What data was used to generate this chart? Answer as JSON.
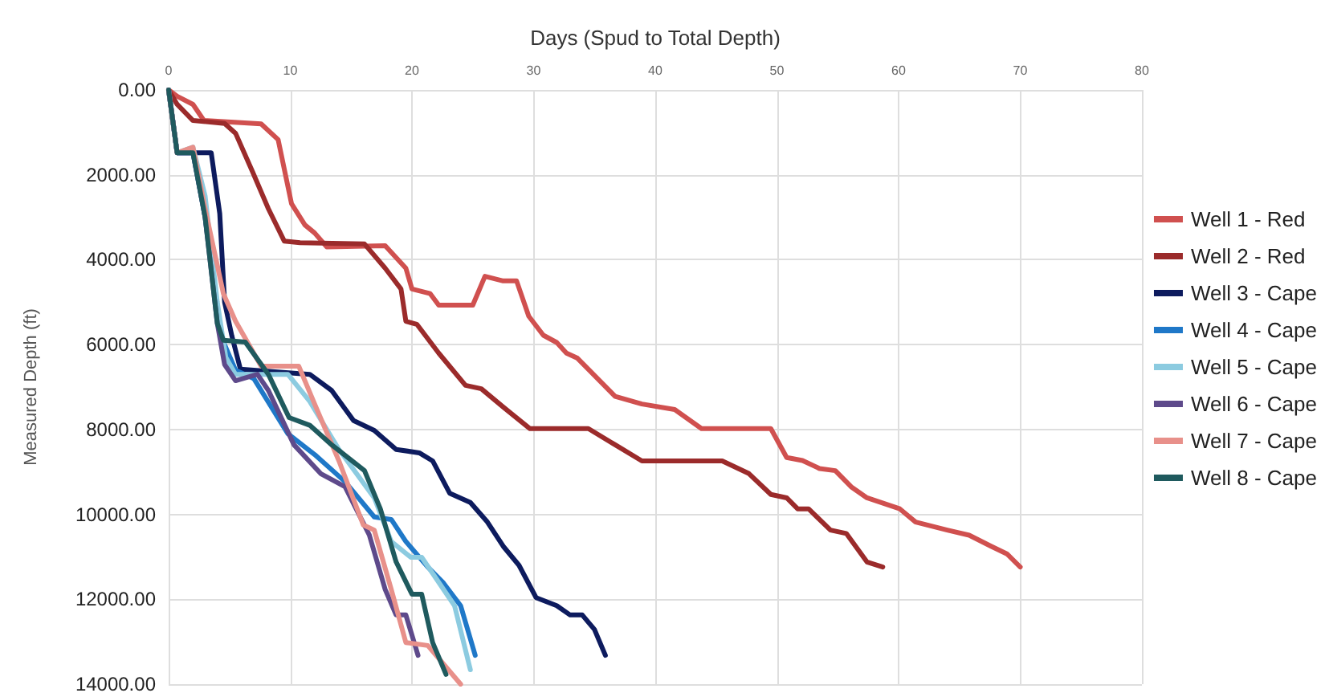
{
  "chart_data": {
    "type": "line",
    "xlabel": "Days (Spud to Total Depth)",
    "ylabel": "Measured Depth (ft)",
    "xlim": [
      0,
      80
    ],
    "xticks": [
      0,
      10,
      20,
      30,
      40,
      50,
      60,
      70,
      80
    ],
    "ylim": [
      14000,
      0
    ],
    "yticks": [
      {
        "value": 0,
        "label": "0.00"
      },
      {
        "value": 2000,
        "label": "2000.00"
      },
      {
        "value": 4000,
        "label": "4000.00"
      },
      {
        "value": 6000,
        "label": "6000.00"
      },
      {
        "value": 8000,
        "label": "8000.00"
      },
      {
        "value": 10000,
        "label": "10000.00"
      },
      {
        "value": 12000,
        "label": "12000.00"
      },
      {
        "value": 14000,
        "label": "14000.00"
      }
    ],
    "grid": true,
    "legend": "right",
    "marker": "none",
    "line_style": "solid",
    "series": [
      {
        "name": "Well 1 - Red",
        "color": "#d0504f",
        "x": [
          0,
          0.7,
          2,
          2.9,
          7.6,
          9,
          10.1,
          11.2,
          12,
          13,
          17.8,
          19.5,
          20,
          21.5,
          22.2,
          25,
          26,
          27.5,
          28.6,
          29.6,
          30.8,
          31.9,
          32.7,
          33.6,
          34.5,
          36.7,
          38.9,
          41.6,
          43.8,
          49.5,
          50.8,
          52.1,
          53.5,
          54.8,
          56.1,
          57.4,
          60.1,
          61.4,
          64,
          65.8,
          67.6,
          68.9,
          70
        ],
        "values": [
          0,
          150,
          340,
          720,
          800,
          1170,
          2680,
          3180,
          3370,
          3700,
          3670,
          4200,
          4690,
          4800,
          5070,
          5070,
          4390,
          4500,
          4500,
          5330,
          5780,
          5950,
          6200,
          6320,
          6580,
          7220,
          7400,
          7530,
          7980,
          7980,
          8660,
          8730,
          8920,
          8970,
          9350,
          9610,
          9870,
          10180,
          10370,
          10490,
          10750,
          10930,
          11240
        ]
      },
      {
        "name": "Well 2 - Red",
        "color": "#9b2b2b",
        "x": [
          0,
          0.7,
          2,
          4.6,
          5.5,
          6.9,
          8.2,
          9.5,
          10.8,
          16.1,
          17.8,
          19.1,
          19.5,
          20.4,
          22.2,
          24.4,
          25.7,
          27.5,
          29.7,
          34.5,
          36.7,
          38.9,
          45.5,
          47.7,
          49.5,
          50.8,
          51.7,
          52.6,
          54.4,
          55.7,
          57.4,
          58.7
        ],
        "values": [
          0,
          340,
          720,
          790,
          1020,
          1930,
          2800,
          3560,
          3600,
          3630,
          4200,
          4690,
          5450,
          5520,
          6200,
          6960,
          7040,
          7470,
          7980,
          7980,
          8360,
          8740,
          8740,
          9040,
          9530,
          9610,
          9870,
          9870,
          10370,
          10450,
          11120,
          11240
        ]
      },
      {
        "name": "Well 3 - Cape",
        "color": "#0d1b5e",
        "x": [
          0,
          0.7,
          2,
          3.5,
          4.2,
          4.6,
          5.2,
          5.9,
          11.6,
          13.4,
          15.2,
          16.9,
          18.7,
          20.6,
          21.7,
          23.1,
          24.8,
          26.2,
          27.5,
          28.8,
          30.2,
          31.9,
          33,
          34,
          35,
          35.9
        ],
        "values": [
          0,
          1480,
          1480,
          1480,
          2910,
          5000,
          5800,
          6580,
          6700,
          7080,
          7790,
          8020,
          8470,
          8550,
          8740,
          9500,
          9720,
          10180,
          10750,
          11200,
          11960,
          12150,
          12370,
          12370,
          12710,
          13320
        ]
      },
      {
        "name": "Well 4 - Cape",
        "color": "#1f78c8",
        "x": [
          0,
          0.7,
          2,
          3,
          4.3,
          5.5,
          7,
          9.8,
          12,
          14.5,
          16.9,
          18.3,
          19.5,
          21.3,
          22.6,
          24,
          25.2
        ],
        "values": [
          0,
          1480,
          1480,
          3000,
          5800,
          6600,
          6800,
          8100,
          8590,
          9230,
          10060,
          10120,
          10640,
          11240,
          11620,
          12150,
          13320
        ]
      },
      {
        "name": "Well 5 - Cape",
        "color": "#8ccbe0",
        "x": [
          0,
          0.7,
          2,
          3,
          4,
          4.7,
          5.5,
          7.5,
          9.8,
          11.6,
          14,
          16.9,
          18.3,
          19.9,
          20.8,
          21.7,
          23.5,
          24.8
        ],
        "values": [
          0,
          1480,
          1350,
          2500,
          5000,
          6300,
          6700,
          6700,
          6700,
          7340,
          8470,
          9610,
          10640,
          11010,
          11010,
          11390,
          12150,
          13660
        ]
      },
      {
        "name": "Well 6 - Cape",
        "color": "#5e4a8b",
        "x": [
          0,
          0.7,
          2,
          3,
          4,
          4.6,
          5.5,
          7.3,
          8.2,
          10.3,
          12.5,
          14.5,
          16.5,
          17.8,
          18.7,
          19.5,
          20.5
        ],
        "values": [
          0,
          1480,
          1480,
          3000,
          5500,
          6470,
          6850,
          6700,
          7080,
          8360,
          9040,
          9350,
          10490,
          11770,
          12370,
          12370,
          13320
        ]
      },
      {
        "name": "Well 7 - Cape",
        "color": "#e8908a",
        "x": [
          0,
          0.7,
          2,
          3,
          4.5,
          5.5,
          7.6,
          10.7,
          12,
          14,
          16,
          16.9,
          18.3,
          19.5,
          21.3,
          24
        ],
        "values": [
          0,
          1480,
          1350,
          2800,
          4800,
          5450,
          6510,
          6510,
          7400,
          8740,
          10250,
          10370,
          11770,
          13020,
          13090,
          14000
        ]
      },
      {
        "name": "Well 8 - Cape",
        "color": "#1f5a5e",
        "x": [
          0,
          0.7,
          2,
          3,
          4,
          4.5,
          6.3,
          8.2,
          9.9,
          11.6,
          13.4,
          16.1,
          17.4,
          18.7,
          20,
          20.8,
          21.7,
          22.8
        ],
        "values": [
          0,
          1480,
          1480,
          3000,
          5500,
          5900,
          5940,
          6700,
          7720,
          7900,
          8360,
          8970,
          9870,
          11120,
          11880,
          11880,
          13020,
          13770
        ]
      }
    ]
  }
}
